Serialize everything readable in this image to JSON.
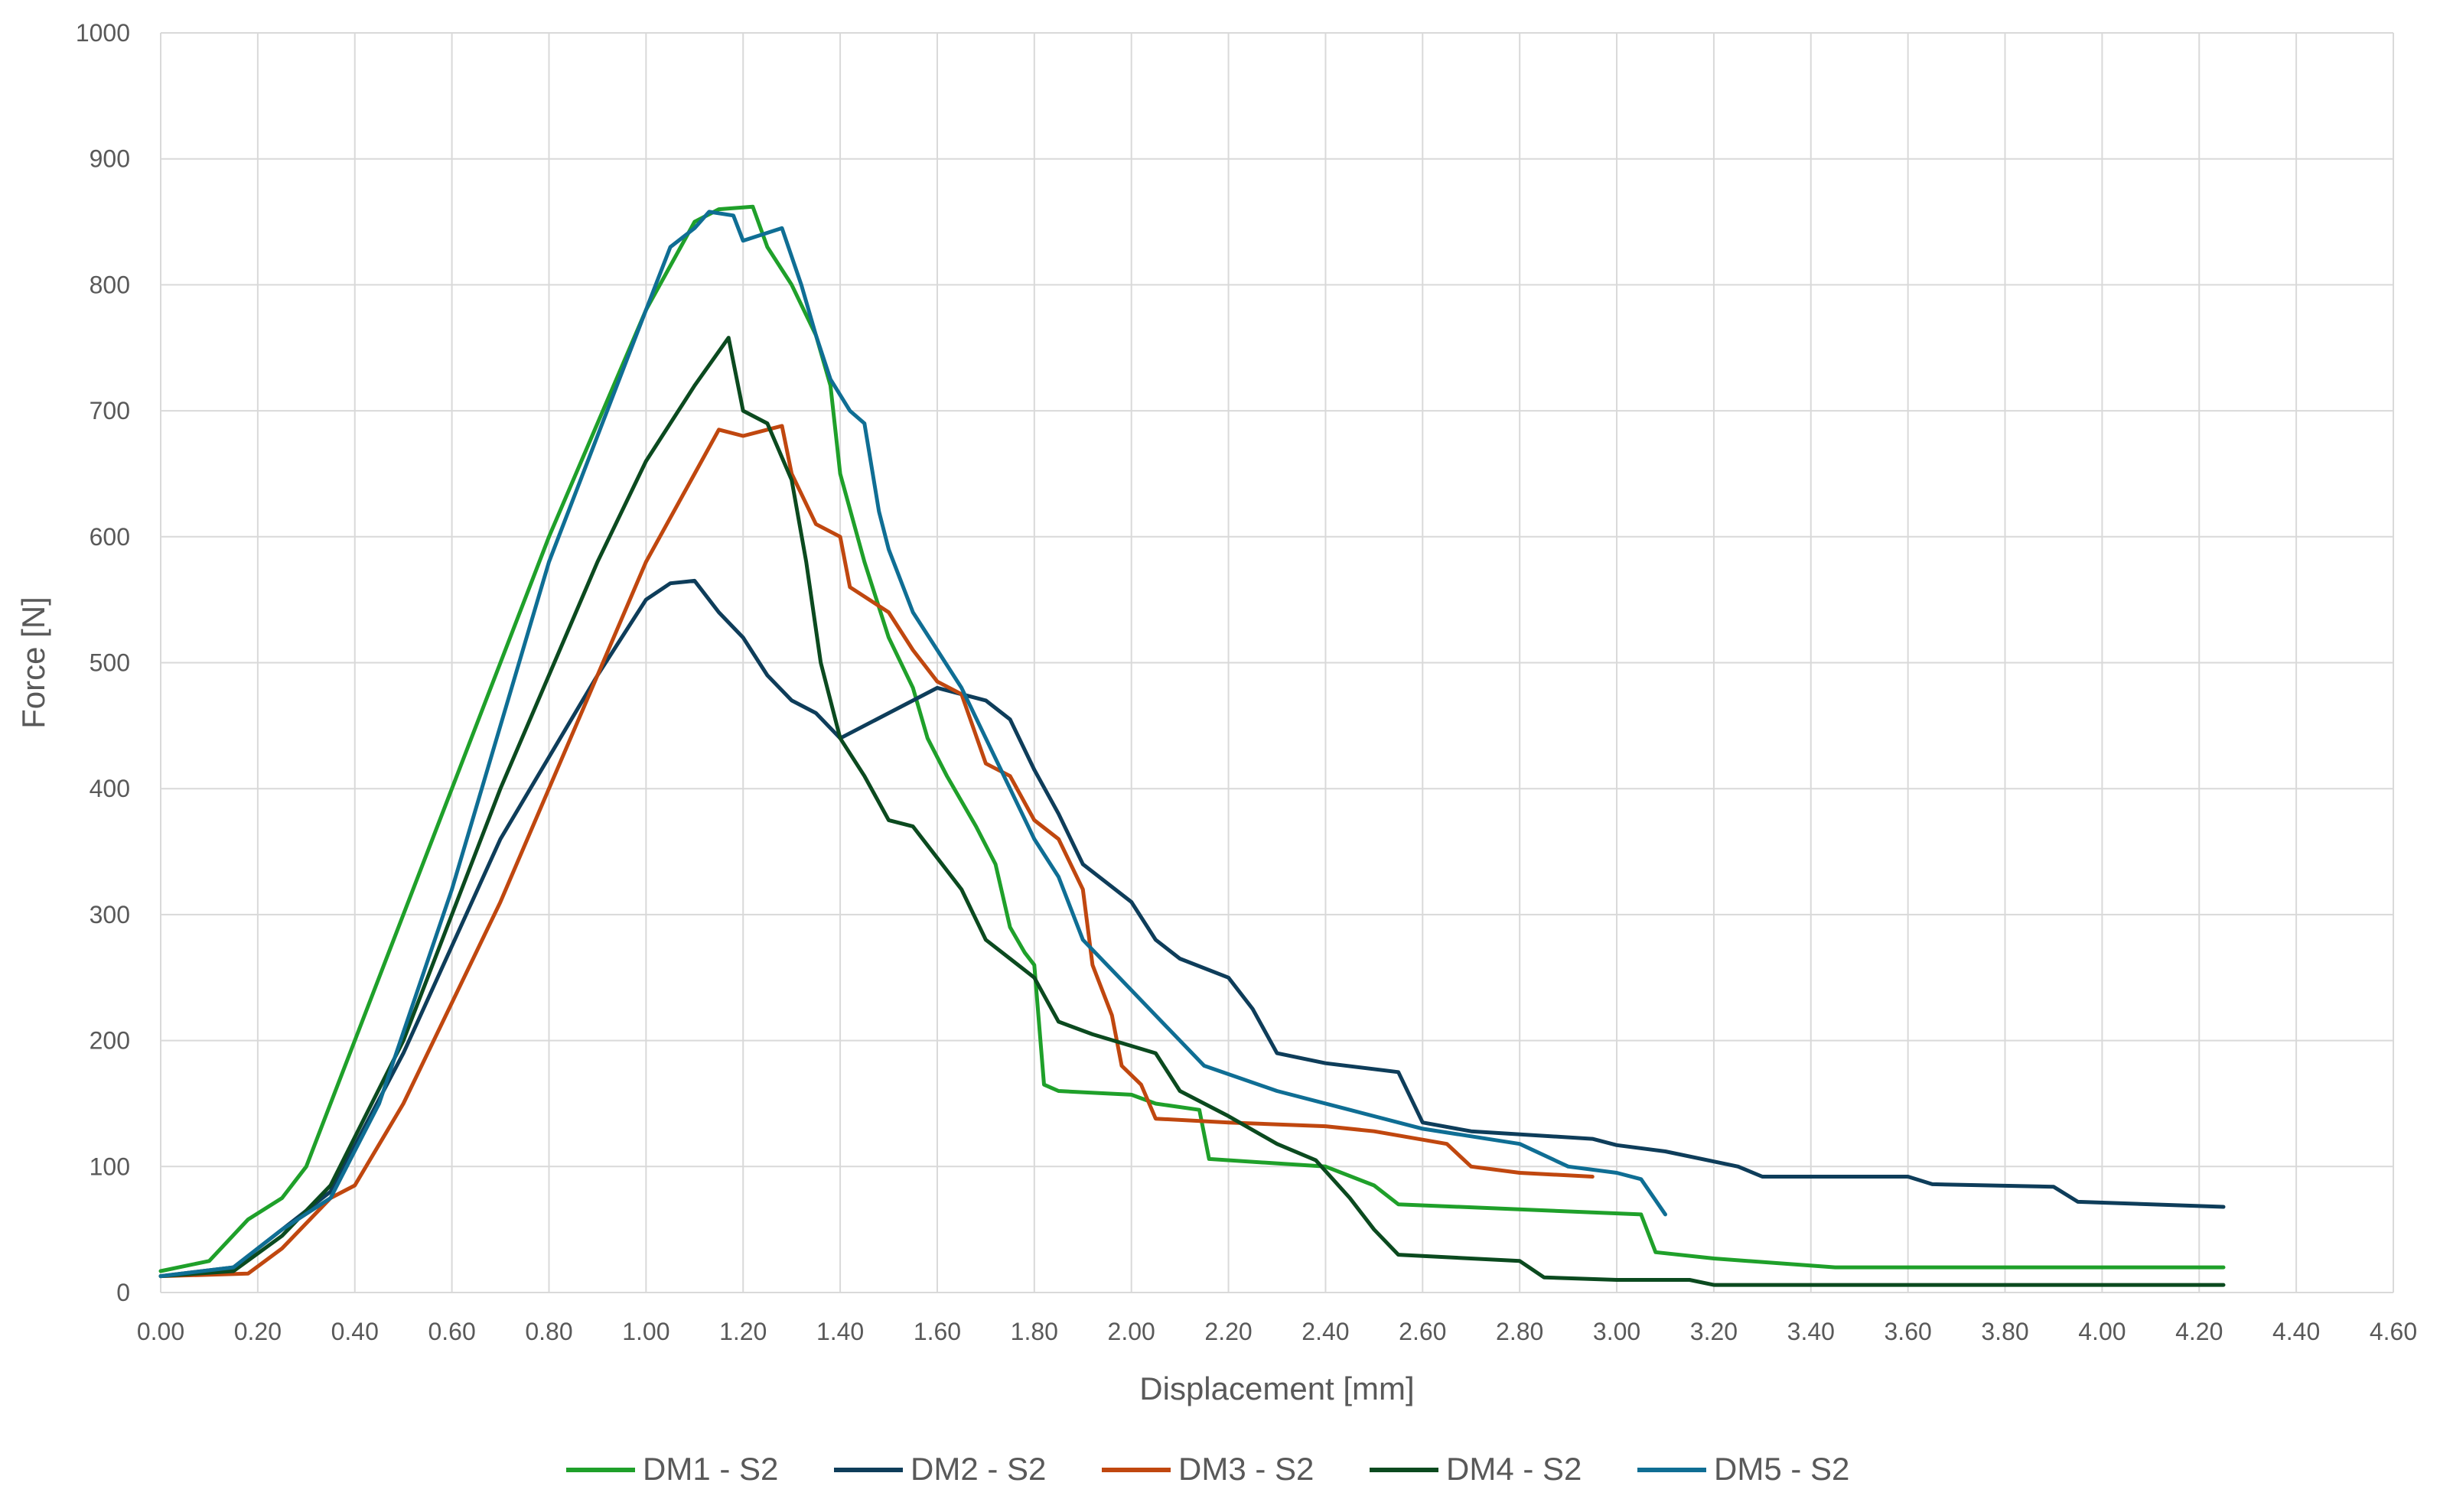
{
  "chart_data": {
    "type": "line",
    "title": "",
    "xlabel": "Displacement [mm]",
    "ylabel": "Force [N]",
    "xlim": [
      0,
      4.6
    ],
    "ylim": [
      0,
      1000
    ],
    "xticks": [
      "0.00",
      "0.20",
      "0.40",
      "0.60",
      "0.80",
      "1.00",
      "1.20",
      "1.40",
      "1.60",
      "1.80",
      "2.00",
      "2.20",
      "2.40",
      "2.60",
      "2.80",
      "3.00",
      "3.20",
      "3.40",
      "3.60",
      "3.80",
      "4.00",
      "4.20",
      "4.40",
      "4.60"
    ],
    "yticks": [
      "0",
      "100",
      "200",
      "300",
      "400",
      "500",
      "600",
      "700",
      "800",
      "900",
      "1000"
    ],
    "grid": true,
    "legend_position": "bottom",
    "series": [
      {
        "name": "DM1 - S2",
        "color": "#1fa02a",
        "points": [
          [
            0,
            17
          ],
          [
            0.1,
            25
          ],
          [
            0.18,
            58
          ],
          [
            0.25,
            75
          ],
          [
            0.3,
            100
          ],
          [
            0.4,
            200
          ],
          [
            0.6,
            400
          ],
          [
            0.8,
            600
          ],
          [
            1.0,
            780
          ],
          [
            1.1,
            850
          ],
          [
            1.15,
            860
          ],
          [
            1.22,
            862
          ],
          [
            1.25,
            830
          ],
          [
            1.3,
            800
          ],
          [
            1.35,
            760
          ],
          [
            1.38,
            720
          ],
          [
            1.4,
            650
          ],
          [
            1.45,
            580
          ],
          [
            1.5,
            520
          ],
          [
            1.55,
            480
          ],
          [
            1.58,
            440
          ],
          [
            1.62,
            410
          ],
          [
            1.68,
            370
          ],
          [
            1.72,
            340
          ],
          [
            1.75,
            290
          ],
          [
            1.78,
            270
          ],
          [
            1.8,
            260
          ],
          [
            1.82,
            165
          ],
          [
            1.85,
            160
          ],
          [
            2.0,
            157
          ],
          [
            2.05,
            150
          ],
          [
            2.14,
            145
          ],
          [
            2.16,
            106
          ],
          [
            2.4,
            100
          ],
          [
            2.5,
            85
          ],
          [
            2.55,
            70
          ],
          [
            3.05,
            62
          ],
          [
            3.08,
            32
          ],
          [
            3.2,
            27
          ],
          [
            3.45,
            20
          ],
          [
            4.25,
            20
          ]
        ]
      },
      {
        "name": "DM2 - S2",
        "color": "#0e3d5a",
        "points": [
          [
            0,
            13
          ],
          [
            0.15,
            20
          ],
          [
            0.25,
            50
          ],
          [
            0.35,
            80
          ],
          [
            0.5,
            190
          ],
          [
            0.7,
            360
          ],
          [
            0.9,
            490
          ],
          [
            1.0,
            550
          ],
          [
            1.05,
            563
          ],
          [
            1.1,
            565
          ],
          [
            1.15,
            540
          ],
          [
            1.2,
            520
          ],
          [
            1.25,
            490
          ],
          [
            1.3,
            470
          ],
          [
            1.35,
            460
          ],
          [
            1.4,
            440
          ],
          [
            1.5,
            460
          ],
          [
            1.6,
            480
          ],
          [
            1.7,
            470
          ],
          [
            1.75,
            455
          ],
          [
            1.8,
            415
          ],
          [
            1.85,
            380
          ],
          [
            1.9,
            340
          ],
          [
            2.0,
            310
          ],
          [
            2.05,
            280
          ],
          [
            2.1,
            265
          ],
          [
            2.2,
            250
          ],
          [
            2.25,
            225
          ],
          [
            2.3,
            190
          ],
          [
            2.4,
            182
          ],
          [
            2.55,
            175
          ],
          [
            2.6,
            135
          ],
          [
            2.7,
            128
          ],
          [
            2.95,
            122
          ],
          [
            3.0,
            117
          ],
          [
            3.1,
            112
          ],
          [
            3.25,
            100
          ],
          [
            3.3,
            92
          ],
          [
            3.6,
            92
          ],
          [
            3.65,
            86
          ],
          [
            3.9,
            84
          ],
          [
            3.95,
            72
          ],
          [
            4.25,
            68
          ]
        ]
      },
      {
        "name": "DM3 - S2",
        "color": "#c0470f",
        "points": [
          [
            0,
            13
          ],
          [
            0.18,
            15
          ],
          [
            0.25,
            35
          ],
          [
            0.35,
            75
          ],
          [
            0.4,
            85
          ],
          [
            0.5,
            150
          ],
          [
            0.7,
            310
          ],
          [
            0.9,
            490
          ],
          [
            1.0,
            580
          ],
          [
            1.1,
            650
          ],
          [
            1.15,
            685
          ],
          [
            1.2,
            680
          ],
          [
            1.25,
            685
          ],
          [
            1.28,
            688
          ],
          [
            1.3,
            650
          ],
          [
            1.35,
            610
          ],
          [
            1.4,
            600
          ],
          [
            1.42,
            560
          ],
          [
            1.5,
            540
          ],
          [
            1.55,
            510
          ],
          [
            1.6,
            485
          ],
          [
            1.65,
            475
          ],
          [
            1.7,
            420
          ],
          [
            1.75,
            410
          ],
          [
            1.8,
            375
          ],
          [
            1.85,
            360
          ],
          [
            1.9,
            320
          ],
          [
            1.92,
            260
          ],
          [
            1.96,
            220
          ],
          [
            1.98,
            180
          ],
          [
            2.02,
            165
          ],
          [
            2.05,
            138
          ],
          [
            2.2,
            135
          ],
          [
            2.4,
            132
          ],
          [
            2.5,
            128
          ],
          [
            2.65,
            118
          ],
          [
            2.7,
            100
          ],
          [
            2.8,
            95
          ],
          [
            2.95,
            92
          ]
        ]
      },
      {
        "name": "DM4 - S2",
        "color": "#0b4a1f",
        "points": [
          [
            0,
            13
          ],
          [
            0.15,
            17
          ],
          [
            0.25,
            45
          ],
          [
            0.35,
            85
          ],
          [
            0.5,
            200
          ],
          [
            0.7,
            400
          ],
          [
            0.9,
            580
          ],
          [
            1.0,
            660
          ],
          [
            1.1,
            720
          ],
          [
            1.17,
            758
          ],
          [
            1.2,
            700
          ],
          [
            1.25,
            690
          ],
          [
            1.3,
            645
          ],
          [
            1.33,
            580
          ],
          [
            1.36,
            500
          ],
          [
            1.4,
            440
          ],
          [
            1.45,
            410
          ],
          [
            1.5,
            375
          ],
          [
            1.55,
            370
          ],
          [
            1.6,
            345
          ],
          [
            1.65,
            320
          ],
          [
            1.7,
            280
          ],
          [
            1.75,
            265
          ],
          [
            1.8,
            250
          ],
          [
            1.85,
            215
          ],
          [
            1.92,
            205
          ],
          [
            2.05,
            190
          ],
          [
            2.1,
            160
          ],
          [
            2.2,
            140
          ],
          [
            2.3,
            118
          ],
          [
            2.38,
            105
          ],
          [
            2.45,
            75
          ],
          [
            2.5,
            50
          ],
          [
            2.55,
            30
          ],
          [
            2.8,
            25
          ],
          [
            2.85,
            12
          ],
          [
            3.0,
            10
          ],
          [
            3.15,
            10
          ],
          [
            3.2,
            6
          ],
          [
            4.25,
            6
          ]
        ]
      },
      {
        "name": "DM5 - S2",
        "color": "#0f6e94",
        "points": [
          [
            0,
            13
          ],
          [
            0.15,
            20
          ],
          [
            0.25,
            50
          ],
          [
            0.35,
            75
          ],
          [
            0.45,
            150
          ],
          [
            0.6,
            320
          ],
          [
            0.8,
            580
          ],
          [
            1.0,
            780
          ],
          [
            1.05,
            830
          ],
          [
            1.1,
            845
          ],
          [
            1.13,
            858
          ],
          [
            1.18,
            855
          ],
          [
            1.2,
            835
          ],
          [
            1.28,
            845
          ],
          [
            1.32,
            800
          ],
          [
            1.35,
            760
          ],
          [
            1.38,
            725
          ],
          [
            1.42,
            700
          ],
          [
            1.45,
            690
          ],
          [
            1.48,
            620
          ],
          [
            1.5,
            590
          ],
          [
            1.55,
            540
          ],
          [
            1.6,
            510
          ],
          [
            1.65,
            480
          ],
          [
            1.7,
            440
          ],
          [
            1.75,
            400
          ],
          [
            1.8,
            360
          ],
          [
            1.85,
            330
          ],
          [
            1.9,
            280
          ],
          [
            2.0,
            240
          ],
          [
            2.05,
            220
          ],
          [
            2.15,
            180
          ],
          [
            2.3,
            160
          ],
          [
            2.45,
            145
          ],
          [
            2.6,
            130
          ],
          [
            2.8,
            118
          ],
          [
            2.9,
            100
          ],
          [
            3.0,
            95
          ],
          [
            3.05,
            90
          ],
          [
            3.1,
            62
          ]
        ]
      }
    ]
  }
}
